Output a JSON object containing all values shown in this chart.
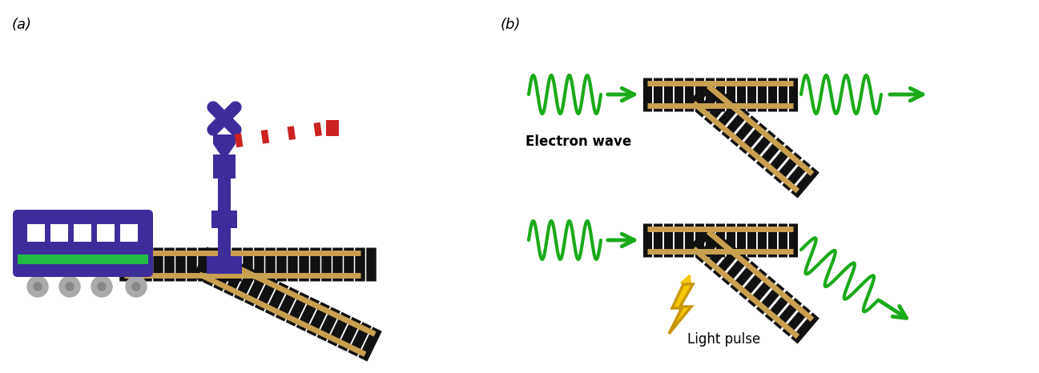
{
  "fig_width": 12.97,
  "fig_height": 4.66,
  "dpi": 100,
  "bg_color": "#ffffff",
  "label_a": "(a)",
  "label_b": "(b)",
  "wave_color": "#1aaa1a",
  "track_rail_color": "#c8a050",
  "track_sleeper_color": "#111111",
  "train_purple": "#3d2d9a",
  "train_green": "#22bb44",
  "signal_purple": "#3d2d9a",
  "barrier_red": "#cc2222",
  "lightning_yellow": "#f5c800",
  "lightning_outline": "#c8960a",
  "text_color": "#000000",
  "electron_wave_label": "Electron wave",
  "light_pulse_label": "Light pulse"
}
